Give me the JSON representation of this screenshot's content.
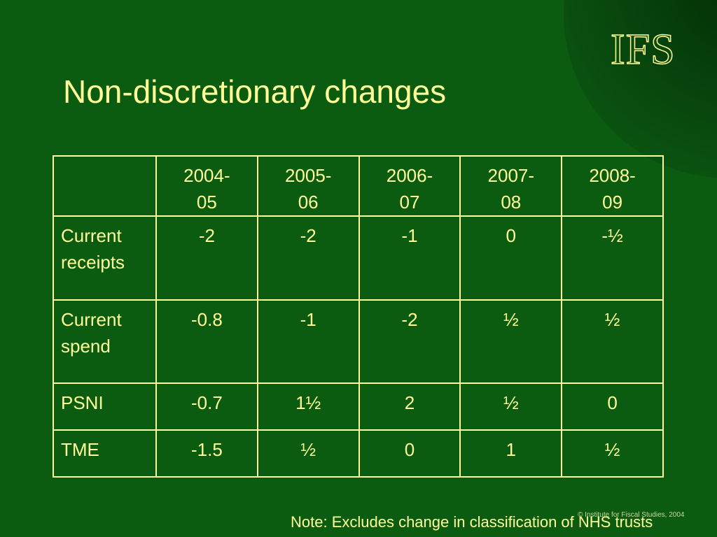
{
  "logo": "IFS",
  "title": "Non-discretionary changes",
  "table": {
    "header": [
      "2004-05",
      "2005-06",
      "2006-07",
      "2007-08",
      "2008-09"
    ],
    "rows": [
      {
        "label": "Current receipts",
        "values": [
          "-2",
          "-2",
          "-1",
          "0",
          "-½"
        ]
      },
      {
        "label": "Current spend",
        "values": [
          "-0.8",
          "-1",
          "-2",
          "½",
          "½"
        ]
      },
      {
        "label": "PSNI",
        "values": [
          "-0.7",
          "1½",
          "2",
          "½",
          "0"
        ]
      },
      {
        "label": "TME",
        "values": [
          "-1.5",
          "½",
          "0",
          "1",
          "½"
        ]
      }
    ]
  },
  "note": "Note: Excludes change in classification of NHS trusts",
  "copyright": "© Institute for Fiscal Studies, 2004"
}
